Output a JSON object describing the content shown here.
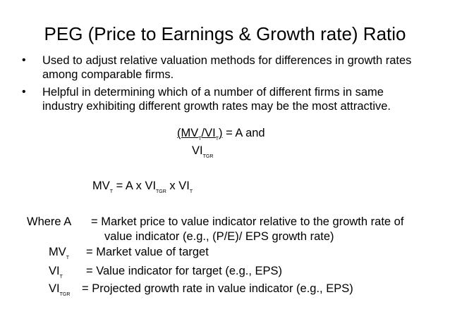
{
  "title": "PEG (Price to Earnings & Growth rate) Ratio",
  "bullets": [
    {
      "line1": "Used to adjust relative valuation methods for differences in growth rates",
      "line2": "among comparable firms."
    },
    {
      "line1": "Helpful in determining which of a number of different firms in same",
      "line2": "industry exhibiting different growth rates may be the most attractive."
    }
  ],
  "bullet_glyph": "•",
  "formula1": {
    "open": "(MV",
    "sub1": "T",
    "slash": "/VI",
    "sub2": "T",
    "close": ")",
    "rhs": " = A  and",
    "den": "VI",
    "den_sub": "TGR"
  },
  "formula2": {
    "mv": "MV",
    "mv_sub": "T",
    "eq": " = A x VI",
    "tgr_sub": "TGR",
    "x": " x VI",
    "vi_sub": "T"
  },
  "definitions": {
    "a_label": "Where  A",
    "a_line1": "= Market price to value indicator relative to the growth rate of",
    "a_line2": "value indicator (e.g., (P/E)/ EPS growth rate)",
    "mv_label": "MV",
    "mv_sub": "T",
    "mv_text": "= Market value of target",
    "vi_label": "VI",
    "vi_sub": "T",
    "vi_text": "= Value indicator for target (e.g., EPS)",
    "vitgr_label": "VI",
    "vitgr_sub": "TGR",
    "vitgr_text": "= Projected growth rate in value indicator (e.g., EPS)"
  }
}
